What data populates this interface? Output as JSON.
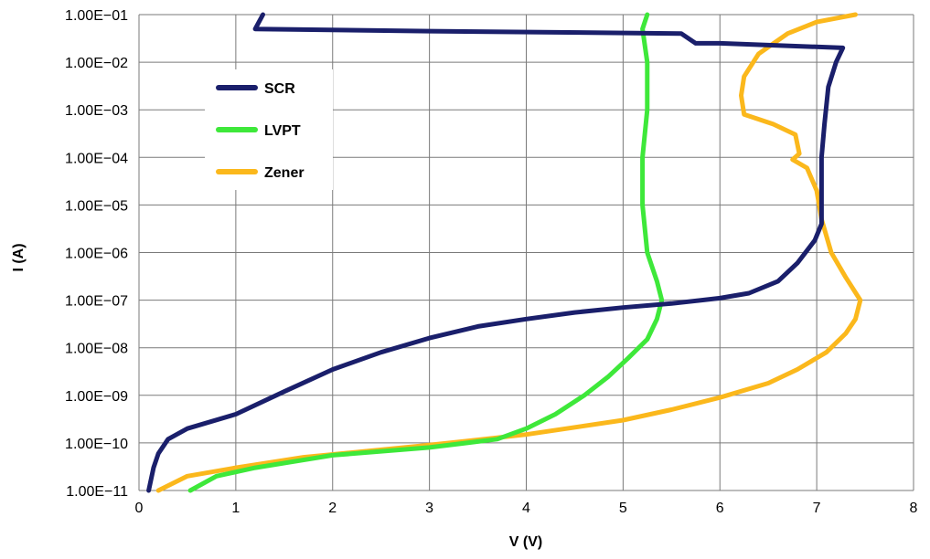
{
  "chart_data": {
    "type": "line",
    "xlabel": "V (V)",
    "ylabel": "I (A)",
    "xlim": [
      0,
      8
    ],
    "ylim": [
      1e-11,
      0.1
    ],
    "yscale": "log",
    "grid": true,
    "legend_position": "top-left",
    "x_ticks": [
      "0",
      "1",
      "2",
      "3",
      "4",
      "5",
      "6",
      "7",
      "8"
    ],
    "y_ticks": [
      "1.00E−11",
      "1.00E−10",
      "1.00E−09",
      "1.00E−08",
      "1.00E−07",
      "1.00E−06",
      "1.00E−05",
      "1.00E−04",
      "1.00E−03",
      "1.00E−02",
      "1.00E−01"
    ],
    "series": [
      {
        "name": "SCR",
        "color": "#1a1f6b",
        "points": [
          [
            0.1,
            1e-11
          ],
          [
            0.15,
            3e-11
          ],
          [
            0.2,
            6e-11
          ],
          [
            0.3,
            1.2e-10
          ],
          [
            0.5,
            2e-10
          ],
          [
            1.0,
            4e-10
          ],
          [
            1.5,
            1.2e-09
          ],
          [
            2.0,
            3.5e-09
          ],
          [
            2.5,
            8e-09
          ],
          [
            3.0,
            1.6e-08
          ],
          [
            3.5,
            2.8e-08
          ],
          [
            4.0,
            4e-08
          ],
          [
            4.5,
            5.5e-08
          ],
          [
            5.0,
            7e-08
          ],
          [
            5.5,
            8.5e-08
          ],
          [
            6.0,
            1.1e-07
          ],
          [
            6.3,
            1.4e-07
          ],
          [
            6.6,
            2.5e-07
          ],
          [
            6.8,
            6e-07
          ],
          [
            6.98,
            1.8e-06
          ],
          [
            7.05,
            4e-06
          ],
          [
            7.05,
            1e-05
          ],
          [
            7.05,
            5e-05
          ],
          [
            7.05,
            0.0001
          ],
          [
            7.08,
            0.0005
          ],
          [
            7.12,
            0.003
          ],
          [
            7.2,
            0.01
          ],
          [
            7.27,
            0.02
          ],
          [
            6.0,
            0.025
          ],
          [
            5.75,
            0.025
          ],
          [
            5.6,
            0.04
          ],
          [
            3.0,
            0.045
          ],
          [
            1.2,
            0.05
          ],
          [
            1.28,
            0.1
          ]
        ]
      },
      {
        "name": "LVPT",
        "color": "#3ee83a",
        "points": [
          [
            0.53,
            1e-11
          ],
          [
            0.8,
            2e-11
          ],
          [
            1.2,
            3e-11
          ],
          [
            2.0,
            5.5e-11
          ],
          [
            3.0,
            8e-11
          ],
          [
            3.7,
            1.2e-10
          ],
          [
            4.0,
            2e-10
          ],
          [
            4.3,
            4e-10
          ],
          [
            4.6,
            1e-09
          ],
          [
            4.85,
            2.5e-09
          ],
          [
            5.05,
            6e-09
          ],
          [
            5.25,
            1.5e-08
          ],
          [
            5.35,
            4e-08
          ],
          [
            5.4,
            1e-07
          ],
          [
            5.35,
            2.5e-07
          ],
          [
            5.25,
            1e-06
          ],
          [
            5.2,
            1e-05
          ],
          [
            5.2,
            0.0001
          ],
          [
            5.25,
            0.001
          ],
          [
            5.25,
            0.01
          ],
          [
            5.2,
            0.05
          ],
          [
            5.25,
            0.1
          ]
        ]
      },
      {
        "name": "Zener",
        "color": "#fbb81c",
        "points": [
          [
            0.2,
            1e-11
          ],
          [
            0.5,
            2e-11
          ],
          [
            1.0,
            3e-11
          ],
          [
            1.7,
            5e-11
          ],
          [
            3.0,
            9e-11
          ],
          [
            4.0,
            1.5e-10
          ],
          [
            5.0,
            3e-10
          ],
          [
            5.5,
            5e-10
          ],
          [
            6.0,
            9e-10
          ],
          [
            6.5,
            1.8e-09
          ],
          [
            6.8,
            3.5e-09
          ],
          [
            7.1,
            8e-09
          ],
          [
            7.3,
            2e-08
          ],
          [
            7.4,
            4e-08
          ],
          [
            7.45,
            1e-07
          ],
          [
            7.3,
            3e-07
          ],
          [
            7.15,
            1e-06
          ],
          [
            7.05,
            5e-06
          ],
          [
            7.0,
            2e-05
          ],
          [
            6.9,
            6e-05
          ],
          [
            6.75,
            9e-05
          ],
          [
            6.82,
            0.00012
          ],
          [
            6.78,
            0.0003
          ],
          [
            6.55,
            0.0005
          ],
          [
            6.25,
            0.0008
          ],
          [
            6.22,
            0.002
          ],
          [
            6.25,
            0.005
          ],
          [
            6.4,
            0.015
          ],
          [
            6.7,
            0.04
          ],
          [
            7.0,
            0.07
          ],
          [
            7.4,
            0.1
          ]
        ]
      }
    ]
  }
}
